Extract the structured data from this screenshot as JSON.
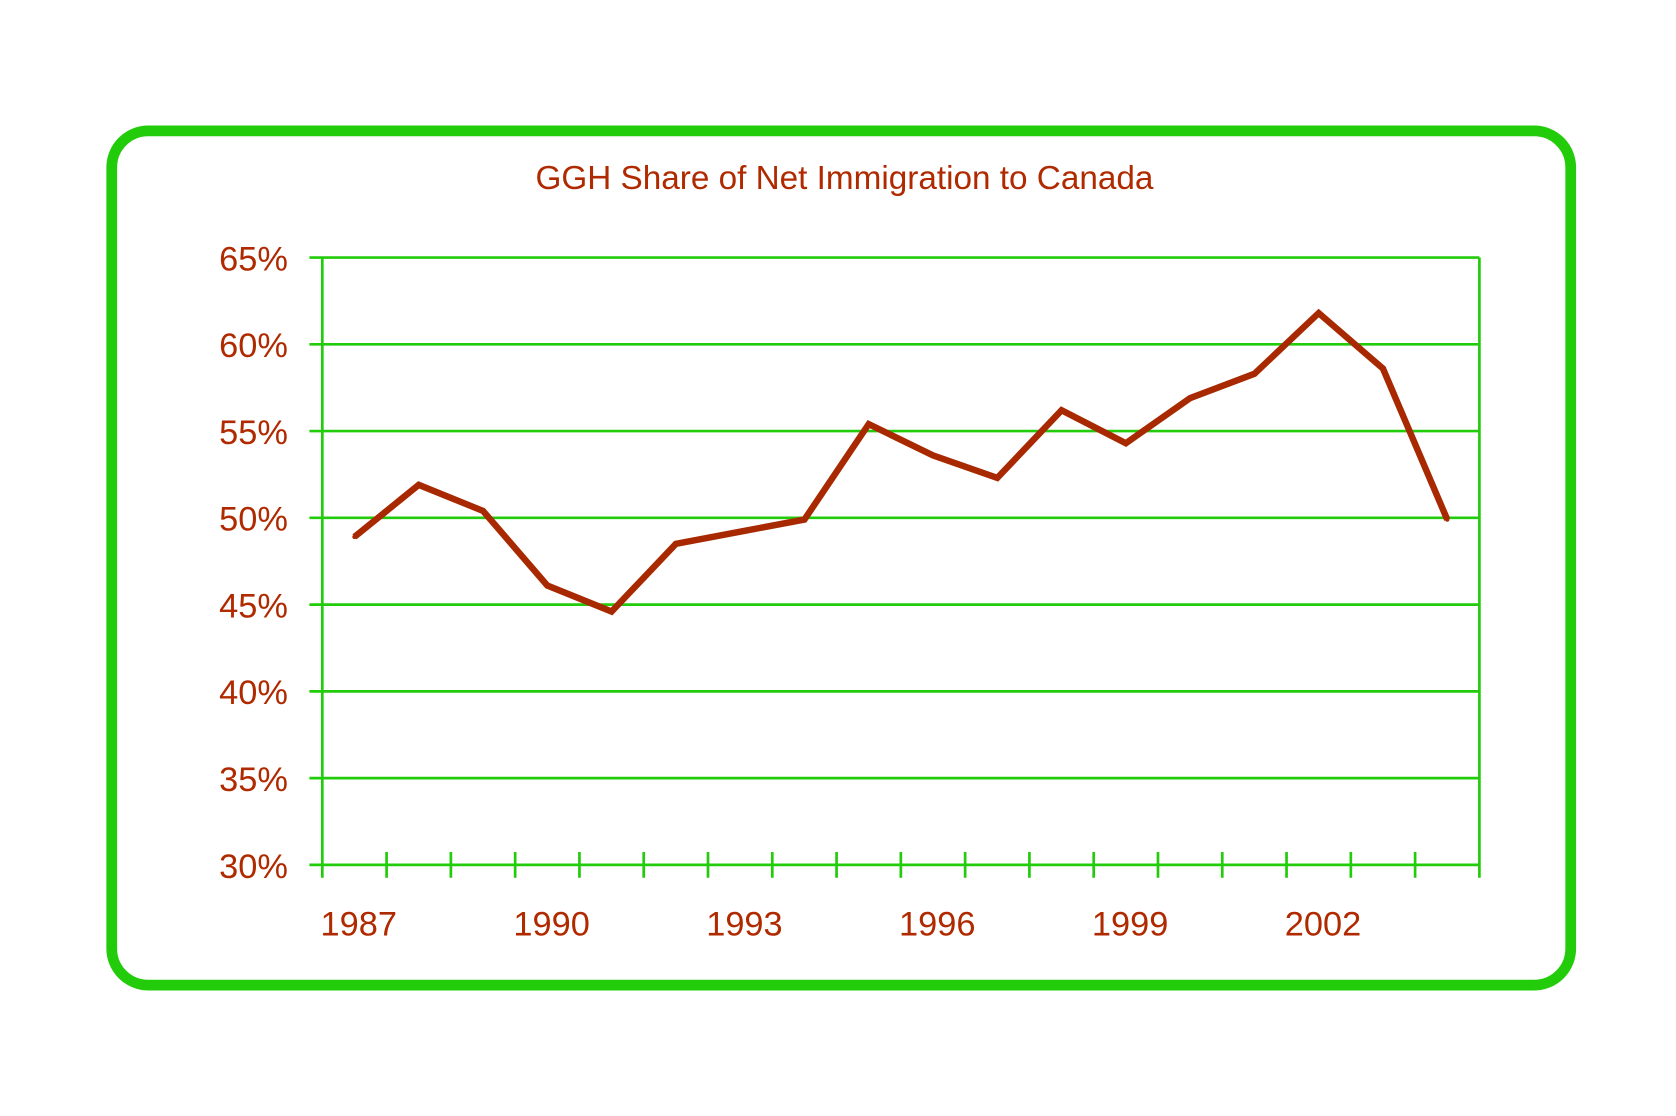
{
  "colors": {
    "frame": "#22cc0a",
    "grid": "#22cc0a",
    "line": "#a82800",
    "text": "#b02a00"
  },
  "chart_data": {
    "type": "line",
    "title": "GGH Share of Net Immigration to Canada",
    "xlabel": "",
    "ylabel": "",
    "x": [
      1987,
      1988,
      1989,
      1990,
      1991,
      1992,
      1993,
      1994,
      1995,
      1996,
      1997,
      1998,
      1999,
      2000,
      2001,
      2002,
      2003,
      2004
    ],
    "series": [
      {
        "name": "GGH share",
        "values": [
          48.9,
          51.9,
          50.4,
          46.1,
          44.6,
          48.5,
          49.2,
          49.9,
          55.4,
          53.6,
          52.3,
          56.2,
          54.3,
          56.9,
          58.3,
          61.8,
          58.6,
          49.9
        ]
      }
    ],
    "ylim": [
      30,
      65
    ],
    "yticks": [
      "30%",
      "35%",
      "40%",
      "45%",
      "50%",
      "55%",
      "60%",
      "65%"
    ],
    "xtick_labels": [
      "1987",
      "1990",
      "1993",
      "1996",
      "1999",
      "2002"
    ],
    "grid": true,
    "legend": "none"
  }
}
